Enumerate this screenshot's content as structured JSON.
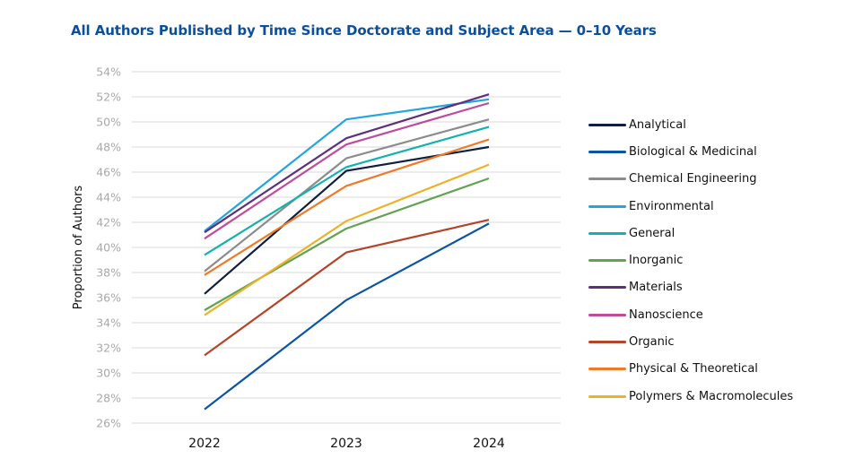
{
  "chart_data": {
    "type": "line",
    "title": "All Authors Published by Time Since Doctorate and Subject Area — 0–10 Years",
    "xlabel": "",
    "ylabel": "Proportion of Authors",
    "x": [
      "2022",
      "2023",
      "2024"
    ],
    "ylim": [
      26,
      54
    ],
    "yticks": [
      "26%",
      "28%",
      "30%",
      "32%",
      "34%",
      "36%",
      "38%",
      "40%",
      "42%",
      "44%",
      "46%",
      "48%",
      "50%",
      "52%",
      "54%"
    ],
    "grid": true,
    "legend_position": "right",
    "series": [
      {
        "name": "Analytical",
        "color": "#0f1f3d",
        "values": [
          36.3,
          46.1,
          48.0
        ]
      },
      {
        "name": "Biological & Medicinal",
        "color": "#0b56a4",
        "values": [
          27.1,
          35.8,
          41.9
        ]
      },
      {
        "name": "Chemical Engineering",
        "color": "#8c8c8c",
        "values": [
          38.1,
          47.1,
          50.2
        ]
      },
      {
        "name": "Environmental",
        "color": "#21a6dd",
        "values": [
          41.3,
          50.2,
          51.8
        ]
      },
      {
        "name": "General",
        "color": "#12b3ad",
        "values": [
          39.4,
          46.4,
          49.6
        ]
      },
      {
        "name": "Inorganic",
        "color": "#62a252",
        "values": [
          35.0,
          41.5,
          45.5
        ]
      },
      {
        "name": "Materials",
        "color": "#5d2f7c",
        "values": [
          41.2,
          48.7,
          52.2
        ]
      },
      {
        "name": "Nanoscience",
        "color": "#bf4b9c",
        "values": [
          40.7,
          48.2,
          51.5
        ]
      },
      {
        "name": "Organic",
        "color": "#b2452a",
        "values": [
          31.4,
          39.6,
          42.2
        ]
      },
      {
        "name": "Physical & Theoretical",
        "color": "#f07a27",
        "values": [
          37.8,
          44.9,
          48.6
        ]
      },
      {
        "name": "Polymers & Macromolecules",
        "color": "#efb02a",
        "values": [
          34.6,
          42.1,
          46.6
        ]
      }
    ]
  },
  "header": {
    "title": "All Authors Published by Time Since Doctorate and Subject Area — 0–10 Years"
  },
  "colors": {
    "title": "#0b4f9c",
    "gridline": "#e6e6e6",
    "tick_label": "#a8a8a8"
  }
}
